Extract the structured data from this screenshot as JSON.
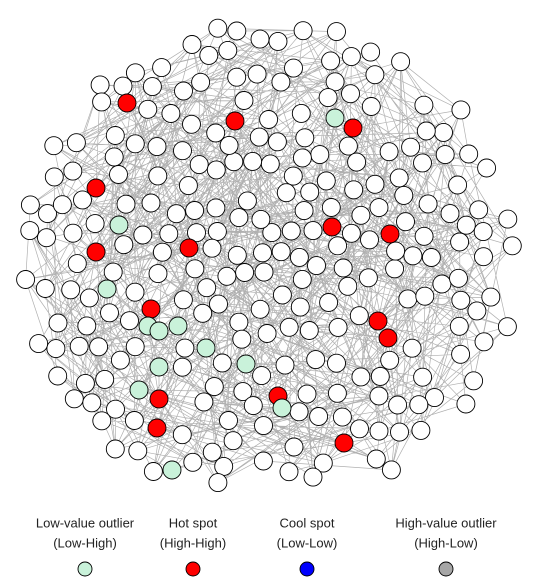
{
  "legend": [
    {
      "label": "Low-value outlier",
      "sublabel": "(Low-High)",
      "color": "#c9f2da"
    },
    {
      "label": "Hot spot",
      "sublabel": "(High-High)",
      "color": "#ff0000"
    },
    {
      "label": "Cool spot",
      "sublabel": "(Low-Low)",
      "color": "#0000ff"
    },
    {
      "label": "High-value outlier",
      "sublabel": "(High-Low)",
      "color": "#a6a6a6"
    }
  ]
}
